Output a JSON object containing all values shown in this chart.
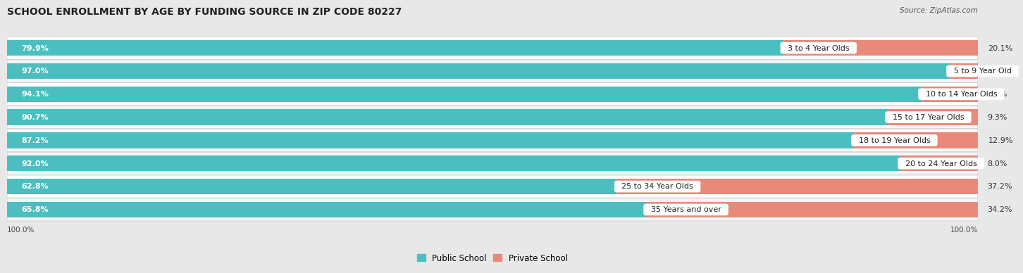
{
  "title": "SCHOOL ENROLLMENT BY AGE BY FUNDING SOURCE IN ZIP CODE 80227",
  "source": "Source: ZipAtlas.com",
  "categories": [
    "3 to 4 Year Olds",
    "5 to 9 Year Old",
    "10 to 14 Year Olds",
    "15 to 17 Year Olds",
    "18 to 19 Year Olds",
    "20 to 24 Year Olds",
    "25 to 34 Year Olds",
    "35 Years and over"
  ],
  "public_values": [
    79.9,
    97.0,
    94.1,
    90.7,
    87.2,
    92.0,
    62.8,
    65.8
  ],
  "private_values": [
    20.1,
    3.0,
    5.9,
    9.3,
    12.9,
    8.0,
    37.2,
    34.2
  ],
  "public_color": "#4BBFBF",
  "private_color": "#E8897A",
  "label_color_public": "#ffffff",
  "label_color_private": "#333333",
  "background_color": "#e8e8e8",
  "row_bg_even": "#f5f5f5",
  "row_bg_odd": "#ffffff",
  "axis_label": "100.0%",
  "legend_public": "Public School",
  "legend_private": "Private School",
  "title_fontsize": 10,
  "bar_label_fontsize": 8,
  "category_fontsize": 8,
  "source_fontsize": 7.5,
  "total_width": 100
}
